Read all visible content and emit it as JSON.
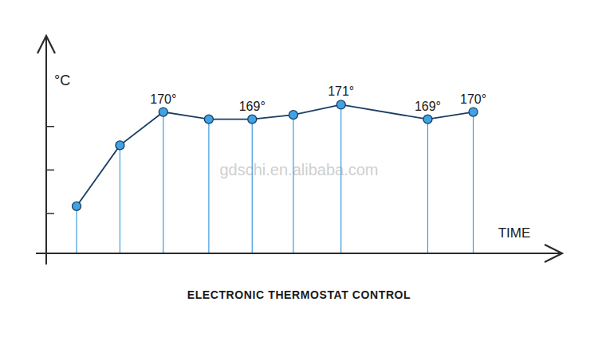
{
  "chart_data": {
    "type": "line",
    "title": "ELECTRONIC THERMOSTAT CONTROL",
    "x_label": "TIME",
    "y_label": "°C",
    "annotations": [
      "gdschi.en.alibaba.com"
    ],
    "x": [
      0.7,
      1.7,
      2.7,
      3.75,
      4.75,
      5.7,
      6.8,
      8.8,
      9.85
    ],
    "values": [
      157,
      165.4,
      170,
      169,
      169,
      169.6,
      171,
      169,
      170
    ],
    "value_labels": [
      null,
      null,
      "170°",
      null,
      "169°",
      null,
      "171°",
      "169°",
      "170°"
    ],
    "data_labels": true,
    "color": "#1b3d63",
    "marker": "circle",
    "line_style": "solid",
    "xlim": [
      0,
      11.9
    ],
    "ylim": [
      150.5,
      180.5
    ],
    "yticks": [
      156,
      162,
      168
    ],
    "tick_labels": false,
    "grid": false
  }
}
